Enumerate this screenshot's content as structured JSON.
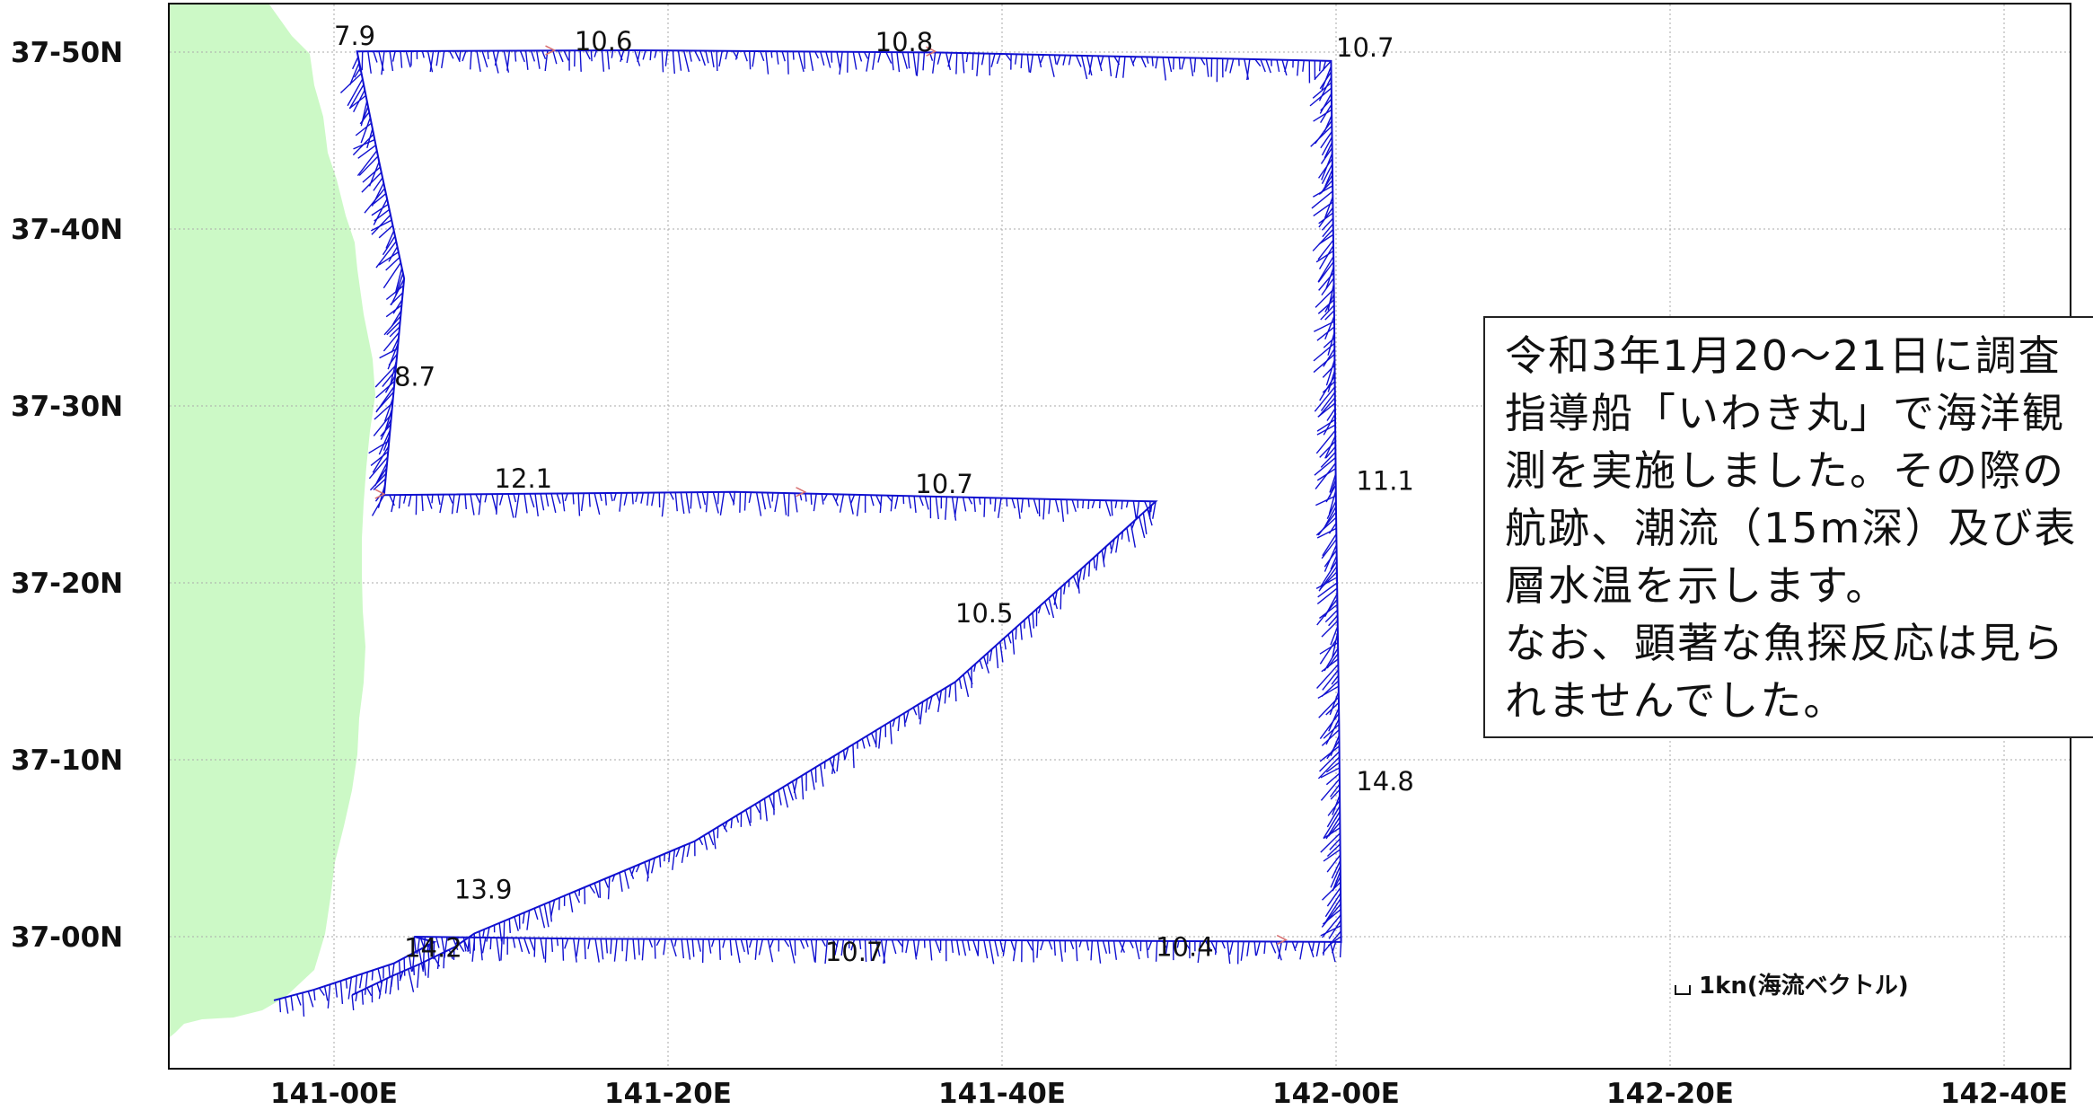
{
  "map": {
    "lat_labels": [
      "37-50N",
      "37-40N",
      "37-30N",
      "37-20N",
      "37-10N",
      "37-00N"
    ],
    "lon_labels": [
      "141-00E",
      "141-20E",
      "141-40E",
      "142-00E",
      "142-20E",
      "142-40E"
    ],
    "land_color": "#ccf9c6",
    "track_color": "#1010d0",
    "temperature_labels": [
      {
        "value": "7.9",
        "lon": 141.0,
        "lat": 37.84
      },
      {
        "value": "10.6",
        "lon": 141.24,
        "lat": 37.835
      },
      {
        "value": "10.8",
        "lon": 141.54,
        "lat": 37.834
      },
      {
        "value": "10.7",
        "lon": 142.0,
        "lat": 37.829
      },
      {
        "value": "8.7",
        "lon": 141.06,
        "lat": 37.519
      },
      {
        "value": "12.1",
        "lon": 141.16,
        "lat": 37.423
      },
      {
        "value": "10.7",
        "lon": 141.58,
        "lat": 37.418
      },
      {
        "value": "11.1",
        "lon": 142.02,
        "lat": 37.421
      },
      {
        "value": "10.5",
        "lon": 141.62,
        "lat": 37.296
      },
      {
        "value": "14.8",
        "lon": 142.02,
        "lat": 37.138
      },
      {
        "value": "13.9",
        "lon": 141.12,
        "lat": 37.036
      },
      {
        "value": "14.2",
        "lon": 141.07,
        "lat": 36.981
      },
      {
        "value": "10.7",
        "lon": 141.49,
        "lat": 36.977
      },
      {
        "value": "10.4",
        "lon": 141.82,
        "lat": 36.982
      }
    ],
    "scale_legend": "1kn(海流ベクトル)"
  },
  "info_box": {
    "lines": [
      "令和3年1月20～21日に調査",
      "指導船「いわき丸」で海洋観",
      "測を実施しました。その際の",
      "航跡、潮流（15m深）及び表",
      "層水温を示します。",
      "なお、顕著な魚探反応は見ら",
      "れませんでした。"
    ]
  }
}
